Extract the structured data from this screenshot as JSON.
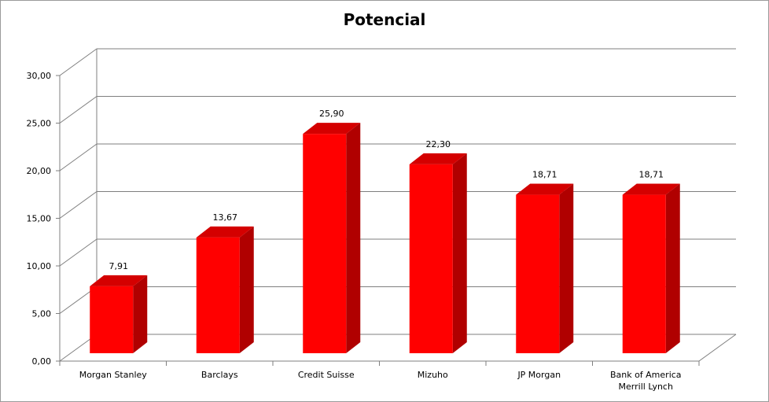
{
  "chart_data": {
    "type": "bar",
    "title": "Potencial",
    "categories": [
      "Morgan Stanley",
      "Barclays",
      "Credit Suisse",
      "Mizuho",
      "JP Morgan",
      "Bank of America Merrill Lynch"
    ],
    "category_lines": [
      [
        "Morgan Stanley"
      ],
      [
        "Barclays"
      ],
      [
        "Credit Suisse"
      ],
      [
        "Mizuho"
      ],
      [
        "JP Morgan"
      ],
      [
        "Bank of America",
        "Merrill Lynch"
      ]
    ],
    "values": [
      7.91,
      13.67,
      25.9,
      22.3,
      18.71,
      18.71
    ],
    "value_labels": [
      "7,91",
      "13,67",
      "25,90",
      "22,30",
      "18,71",
      "18,71"
    ],
    "y_ticks": [
      "0,00",
      "5,00",
      "10,00",
      "15,00",
      "20,00",
      "25,00",
      "30,00"
    ],
    "ylim": [
      0,
      30
    ],
    "grid": true,
    "legend": "none",
    "style": "3d",
    "colors": {
      "bar_front": "#ff0000",
      "bar_side": "#b00000",
      "bar_top": "#d40000",
      "grid": "#7f7f7f"
    }
  }
}
